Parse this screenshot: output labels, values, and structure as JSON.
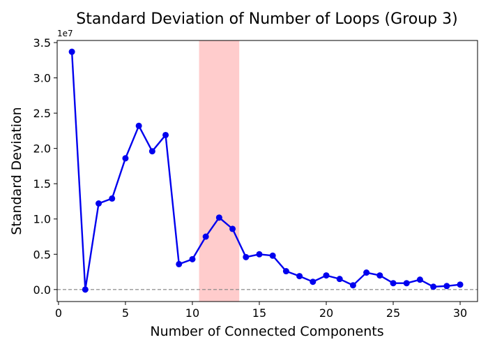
{
  "chart_data": {
    "type": "line",
    "title": "Standard Deviation of Number of Loops (Group 3)",
    "xlabel": "Number of Connected Components",
    "ylabel": "Standard Deviation",
    "y_offset_label": "1e7",
    "xlim": [
      -0.1,
      31.3
    ],
    "ylim": [
      -0.17,
      3.53
    ],
    "y_scale_note": "values shown in units of 1e7",
    "x_ticks": [
      0,
      5,
      10,
      15,
      20,
      25,
      30
    ],
    "x_tick_labels": [
      "0",
      "5",
      "10",
      "15",
      "20",
      "25",
      "30"
    ],
    "y_ticks": [
      0.0,
      0.5,
      1.0,
      1.5,
      2.0,
      2.5,
      3.0,
      3.5
    ],
    "y_tick_labels": [
      "0.0",
      "0.5",
      "1.0",
      "1.5",
      "2.0",
      "2.5",
      "3.0",
      "3.5"
    ],
    "highlight_band": {
      "x_start": 10.5,
      "x_end": 13.5,
      "color": "#ffcccc"
    },
    "reference_line": {
      "y": 0,
      "style": "dashed",
      "color": "#808080"
    },
    "grid": false,
    "series": [
      {
        "color": "#0000ee",
        "x": [
          1,
          2,
          3,
          4,
          5,
          6,
          7,
          8,
          9,
          10,
          11,
          12,
          13,
          14,
          15,
          16,
          17,
          18,
          19,
          20,
          21,
          22,
          23,
          24,
          25,
          26,
          27,
          28,
          29,
          30
        ],
        "values": [
          3.37,
          0.0,
          1.22,
          1.29,
          1.86,
          2.32,
          1.96,
          2.19,
          0.36,
          0.43,
          0.75,
          1.02,
          0.86,
          0.46,
          0.5,
          0.48,
          0.26,
          0.19,
          0.11,
          0.2,
          0.15,
          0.06,
          0.24,
          0.2,
          0.09,
          0.09,
          0.14,
          0.04,
          0.05,
          0.07
        ]
      }
    ]
  }
}
